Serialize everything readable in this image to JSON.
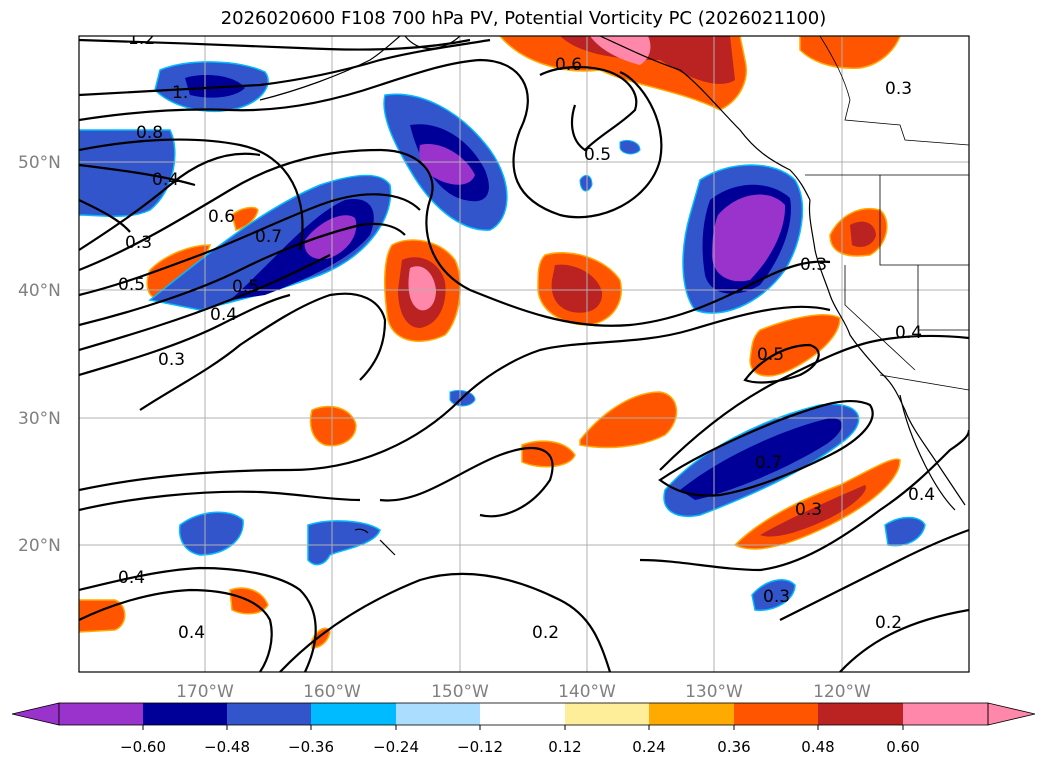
{
  "title": "2026020600 F108 700 hPa PV, Potential Vorticity PC (2026021100)",
  "map": {
    "lat_range": [
      10,
      60
    ],
    "lon_range": [
      -180,
      -110
    ],
    "lat_ticks": [
      {
        "value": 50,
        "label": "50°N"
      },
      {
        "value": 40,
        "label": "40°N"
      },
      {
        "value": 30,
        "label": "30°N"
      },
      {
        "value": 20,
        "label": "20°N"
      }
    ],
    "lon_ticks": [
      {
        "value": -170,
        "label": "170°W"
      },
      {
        "value": -160,
        "label": "160°W"
      },
      {
        "value": -150,
        "label": "150°W"
      },
      {
        "value": -140,
        "label": "140°W"
      },
      {
        "value": -130,
        "label": "130°W"
      },
      {
        "value": -120,
        "label": "120°W"
      }
    ],
    "contour_labels": [
      "1.2",
      "1.",
      "0.8",
      "0.4",
      "0.6",
      "0.3",
      "0.5",
      "0.7",
      "0.4",
      "0.5",
      "0.3",
      "0.6",
      "0.5",
      "0.3",
      "0.3",
      "0.4",
      "0.5",
      "0.7",
      "0.3",
      "0.4",
      "0.3",
      "0.2",
      "0.2",
      "0.4",
      "0.4"
    ],
    "gridlines": true
  },
  "colorbar": {
    "colors": [
      "#9933cc",
      "#000099",
      "#3355cc",
      "#00bbff",
      "#aaddff",
      "#ffffff",
      "#ffee99",
      "#ffaa00",
      "#ff5500",
      "#bb2222",
      "#ff88aa"
    ],
    "ticks": [
      "−0.60",
      "−0.48",
      "−0.36",
      "−0.24",
      "−0.12",
      "0.12",
      "0.24",
      "0.36",
      "0.48",
      "0.60"
    ]
  }
}
